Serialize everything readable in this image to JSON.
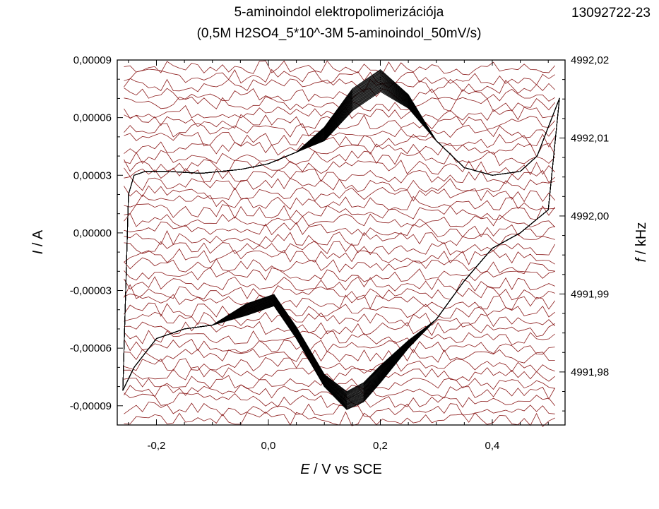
{
  "header": {
    "title": "5-aminoindol elektropolimerizációja",
    "subtitle": "(0,5M H2SO4_5*10^-3M 5-aminoindol_50mV/s)",
    "sample_id": "13092722-23"
  },
  "chart_data": {
    "type": "line",
    "title": "5-aminoindol elektropolimerizációja",
    "subtitle": "(0,5M H2SO4_5*10^-3M 5-aminoindol_50mV/s)",
    "xlabel_italic": "E",
    "xlabel_rest": " / V vs SCE",
    "ylabel_italic": "I",
    "ylabel_rest": " / A",
    "y2label_italic": "f",
    "y2label_rest": " / kHz",
    "xlim": [
      -0.27,
      0.53
    ],
    "ylim": [
      -0.0001,
      9e-05
    ],
    "y2lim": [
      4991.9732,
      4992.02
    ],
    "x_ticks": [
      -0.2,
      0.0,
      0.2,
      0.4
    ],
    "x_tick_labels": [
      "-0,2",
      "0,0",
      "0,2",
      "0,4"
    ],
    "y_ticks": [
      9e-05,
      6e-05,
      3e-05,
      0.0,
      -3e-05,
      -6e-05,
      -9e-05
    ],
    "y_tick_labels": [
      "0,00009",
      "0,00006",
      "0,00003",
      "0,00000",
      "-0,00003",
      "-0,00006",
      "-0,00009"
    ],
    "y2_ticks": [
      4992.02,
      4992.01,
      4992.0,
      4991.99,
      4991.98
    ],
    "y2_tick_labels": [
      "4992,02",
      "4992,01",
      "4992,00",
      "4991,99",
      "4991,98"
    ],
    "grid": false,
    "colors": {
      "current": "#000000",
      "frequency": "#8b1a1a"
    },
    "series": [
      {
        "axis": "left",
        "cycles": 25,
        "anodic_scan": {
          "x": [
            -0.25,
            -0.24,
            -0.22,
            -0.18,
            -0.12,
            -0.05,
            0.0,
            0.05,
            0.1,
            0.15,
            0.2,
            0.25,
            0.3,
            0.35,
            0.4,
            0.45,
            0.48,
            0.5,
            0.52
          ],
          "y": [
            2e-05,
            3e-05,
            3.2e-05,
            3.2e-05,
            3.1e-05,
            3.3e-05,
            3.6e-05,
            4.2e-05,
            5.5e-05,
            7.5e-05,
            8.5e-05,
            7.2e-05,
            4.8e-05,
            3.4e-05,
            3e-05,
            3.2e-05,
            4e-05,
            5.5e-05,
            7e-05
          ]
        },
        "cathodic_scan": {
          "x": [
            0.52,
            0.5,
            0.45,
            0.4,
            0.35,
            0.3,
            0.25,
            0.2,
            0.17,
            0.14,
            0.1,
            0.05,
            0.01,
            -0.04,
            -0.1,
            -0.15,
            -0.2,
            -0.24,
            -0.26
          ],
          "y": [
            7e-05,
            1.2e-05,
            0.0,
            -8e-06,
            -2.5e-05,
            -4.5e-05,
            -6e-05,
            -7.8e-05,
            -8.8e-05,
            -9.2e-05,
            -8e-05,
            -5.5e-05,
            -3.8e-05,
            -4.3e-05,
            -4.8e-05,
            -5e-05,
            -5.5e-05,
            -7e-05,
            -8.2e-05
          ]
        }
      }
    ],
    "frequency_traces": {
      "axis": "right",
      "count": 40,
      "approx_range_kHz": [
        4991.974,
        4992.019
      ]
    }
  }
}
